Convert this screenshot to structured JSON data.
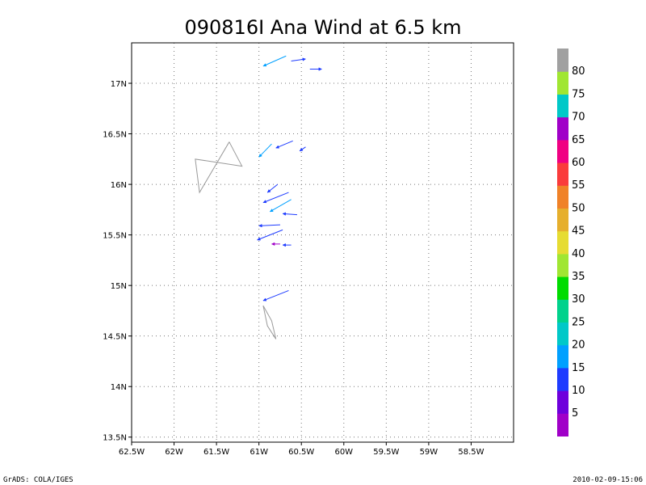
{
  "chart_data": {
    "type": "vector-map",
    "title": "090816I Ana Wind at 6.5 km",
    "xlim": [
      -62.5,
      -58.0
    ],
    "ylim": [
      13.45,
      17.4
    ],
    "x_ticks": [
      -62.5,
      -62,
      -61.5,
      -61,
      -60.5,
      -60,
      -59.5,
      -59,
      -58.5
    ],
    "x_tick_labels": [
      "62.5W",
      "62W",
      "61.5W",
      "61W",
      "60.5W",
      "60W",
      "59.5W",
      "59W",
      "58.5W"
    ],
    "y_ticks": [
      13.5,
      14,
      14.5,
      15,
      15.5,
      16,
      16.5,
      17
    ],
    "y_tick_labels": [
      "13.5N",
      "14N",
      "14.5N",
      "15N",
      "15.5N",
      "16N",
      "16.5N",
      "17N"
    ],
    "grid": true,
    "colorbar": {
      "labels": [
        "5",
        "10",
        "15",
        "20",
        "25",
        "30",
        "35",
        "40",
        "45",
        "50",
        "55",
        "60",
        "65",
        "70",
        "75",
        "80"
      ],
      "colors": [
        "#a000c8",
        "#6e00dc",
        "#1e3cff",
        "#00a0ff",
        "#00c8c8",
        "#00d28c",
        "#00dc00",
        "#a0e632",
        "#e6dc32",
        "#e6af2d",
        "#f08228",
        "#fa3c3c",
        "#f00082",
        "#a000c8",
        "#00c8c8",
        "#a0e632",
        "#a0a0a0"
      ]
    },
    "coastlines": [
      [
        [
          -61.35,
          16.42
        ],
        [
          -61.2,
          16.18
        ],
        [
          -61.75,
          16.25
        ],
        [
          -61.7,
          15.92
        ],
        [
          -61.35,
          16.42
        ]
      ],
      [
        [
          -60.95,
          14.8
        ],
        [
          -60.85,
          14.65
        ],
        [
          -60.8,
          14.47
        ],
        [
          -60.9,
          14.6
        ],
        [
          -60.95,
          14.8
        ]
      ]
    ],
    "vectors": [
      {
        "lon": -60.68,
        "lat": 17.27,
        "u": -0.27,
        "v": -0.1,
        "color": "#00a0ff"
      },
      {
        "lon": -60.62,
        "lat": 17.22,
        "u": 0.17,
        "v": 0.02,
        "color": "#1e3cff"
      },
      {
        "lon": -60.4,
        "lat": 17.14,
        "u": 0.14,
        "v": 0.0,
        "color": "#1e3cff"
      },
      {
        "lon": -60.85,
        "lat": 16.4,
        "u": -0.15,
        "v": -0.13,
        "color": "#00a0ff"
      },
      {
        "lon": -60.6,
        "lat": 16.43,
        "u": -0.2,
        "v": -0.07,
        "color": "#1e3cff"
      },
      {
        "lon": -60.45,
        "lat": 16.37,
        "u": -0.07,
        "v": -0.04,
        "color": "#1e3cff"
      },
      {
        "lon": -60.78,
        "lat": 16.0,
        "u": -0.12,
        "v": -0.08,
        "color": "#1e3cff"
      },
      {
        "lon": -60.65,
        "lat": 15.92,
        "u": -0.3,
        "v": -0.1,
        "color": "#1e3cff"
      },
      {
        "lon": -60.62,
        "lat": 15.85,
        "u": -0.25,
        "v": -0.12,
        "color": "#00a0ff"
      },
      {
        "lon": -60.55,
        "lat": 15.7,
        "u": -0.17,
        "v": 0.01,
        "color": "#1e3cff"
      },
      {
        "lon": -60.75,
        "lat": 15.6,
        "u": -0.25,
        "v": -0.01,
        "color": "#1e3cff"
      },
      {
        "lon": -60.72,
        "lat": 15.55,
        "u": -0.3,
        "v": -0.1,
        "color": "#1e3cff"
      },
      {
        "lon": -60.75,
        "lat": 15.41,
        "u": -0.1,
        "v": 0.0,
        "color": "#a000c8"
      },
      {
        "lon": -60.62,
        "lat": 15.4,
        "u": -0.1,
        "v": 0.0,
        "color": "#1e3cff"
      },
      {
        "lon": -60.65,
        "lat": 14.95,
        "u": -0.3,
        "v": -0.1,
        "color": "#1e3cff"
      }
    ]
  },
  "footer": {
    "left": "GrADS: COLA/IGES",
    "right": "2010-02-09-15:06"
  }
}
